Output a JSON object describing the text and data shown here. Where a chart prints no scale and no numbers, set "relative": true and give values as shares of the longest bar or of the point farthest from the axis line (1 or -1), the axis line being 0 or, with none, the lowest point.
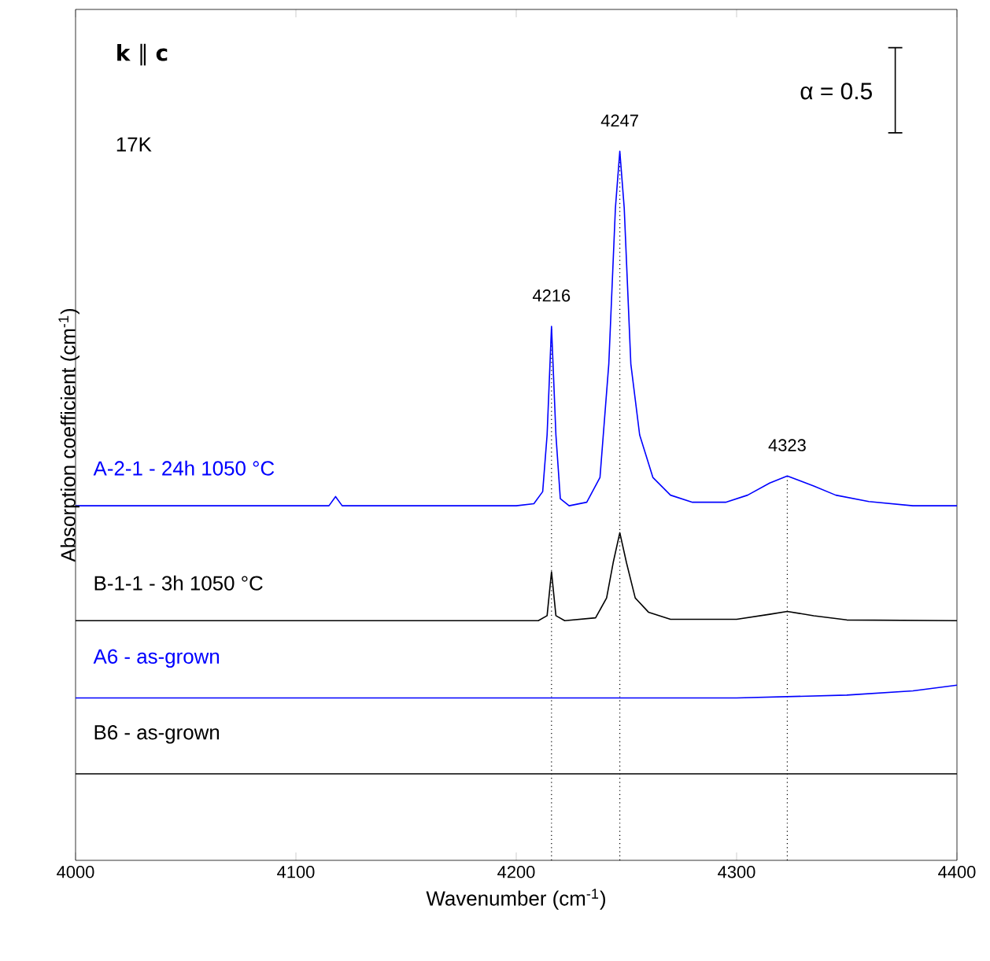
{
  "chart_data": {
    "type": "line",
    "title": "**k** ∥ **c**",
    "xlabel": "Wavenumber (cm$^{-1}$)",
    "ylabel": "Absorption coefficient (cm$^{-1}$)",
    "relative": true,
    "xlim": [
      4000,
      4400
    ],
    "xticks": [
      4000,
      4100,
      4200,
      4300,
      4400
    ],
    "grid": false,
    "legend": false,
    "series": [
      {
        "name": "A-2-1 - 24h 1050 °C",
        "color": "#0000ff",
        "x": [
          4000,
          4100,
          4115,
          4118,
          4121,
          4200,
          4208,
          4212,
          4214,
          4216,
          4218,
          4220,
          4224,
          4232,
          4238,
          4242,
          4245,
          4247,
          4249,
          4252,
          4256,
          4262,
          4270,
          4280,
          4295,
          4305,
          4315,
          4323,
          4335,
          4345,
          4360,
          4380,
          4400
        ],
        "values": [
          0.5,
          0.5,
          0.5,
          0.513,
          0.5,
          0.5,
          0.503,
          0.52,
          0.6,
          0.753,
          0.6,
          0.51,
          0.5,
          0.505,
          0.54,
          0.7,
          0.92,
          1.0,
          0.92,
          0.7,
          0.6,
          0.54,
          0.515,
          0.505,
          0.505,
          0.515,
          0.532,
          0.542,
          0.528,
          0.515,
          0.506,
          0.5,
          0.5
        ]
      },
      {
        "name": "B-1-1 - 3h 1050 °C",
        "color": "#000000",
        "x": [
          4000,
          4210,
          4214,
          4216,
          4218,
          4222,
          4236,
          4241,
          4244,
          4247,
          4250,
          4254,
          4260,
          4270,
          4300,
          4315,
          4323,
          4335,
          4350,
          4400
        ],
        "values": [
          0.338,
          0.338,
          0.345,
          0.407,
          0.345,
          0.338,
          0.342,
          0.37,
          0.42,
          0.462,
          0.42,
          0.37,
          0.35,
          0.34,
          0.34,
          0.347,
          0.351,
          0.345,
          0.339,
          0.338
        ]
      },
      {
        "name": "A6 - as-grown",
        "color": "#0000ff",
        "x": [
          4000,
          4300,
          4350,
          4380,
          4400
        ],
        "values": [
          0.229,
          0.229,
          0.233,
          0.239,
          0.247
        ]
      },
      {
        "name": "B6 - as-grown",
        "color": "#000000",
        "x": [
          4000,
          4400
        ],
        "values": [
          0.122,
          0.122
        ]
      }
    ],
    "ref_lines": [
      {
        "axis": "x",
        "value": 4216,
        "line_style": "dotted"
      },
      {
        "axis": "x",
        "value": 4247,
        "line_style": "dotted"
      },
      {
        "axis": "x",
        "value": 4323,
        "line_style": "dotted"
      }
    ],
    "annotations": [
      "17K",
      "α = 0.5",
      {
        "text": "4216",
        "x": 4216,
        "y": 0.753
      },
      {
        "text": "4247",
        "x": 4247,
        "y": 1.0
      },
      {
        "text": "4323",
        "x": 4323,
        "y": 0.542
      }
    ]
  }
}
